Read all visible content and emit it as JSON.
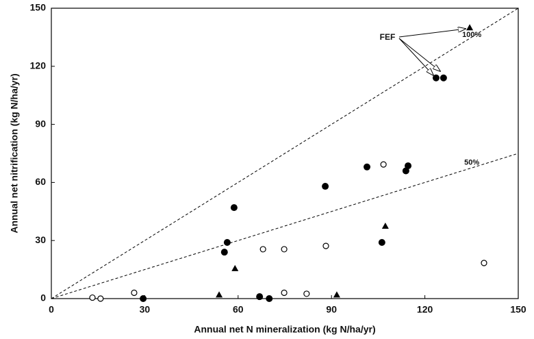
{
  "chart_data": {
    "type": "scatter",
    "x_label": "Annual net N mineralization  (kg N/ha/yr)",
    "y_label": "Annual net nitrification  (kg N/ha/yr)",
    "xlim": [
      0,
      150
    ],
    "ylim": [
      0,
      150
    ],
    "xticks": [
      0,
      30,
      60,
      90,
      120,
      150
    ],
    "yticks": [
      0,
      30,
      60,
      90,
      120,
      150
    ],
    "reference_lines": [
      {
        "slope": 1,
        "label": "100%"
      },
      {
        "slope": 0.5,
        "label": "50%"
      }
    ],
    "annotation": "FEF",
    "series": [
      {
        "marker": "filled-circle",
        "color": "#000000",
        "x": [
          29.5,
          56.5,
          55.6,
          58.7,
          88,
          101.4,
          114.6,
          113.9,
          106.2,
          123.6,
          126,
          66.9,
          70
        ],
        "values": [
          0,
          29,
          24,
          47,
          58,
          68,
          68.6,
          66,
          29,
          114,
          114,
          1,
          0
        ]
      },
      {
        "marker": "open-circle",
        "color": "#000000",
        "x": [
          13.2,
          15.8,
          26.6,
          68,
          74.8,
          74.8,
          82,
          88.2,
          106.7,
          139
        ],
        "values": [
          0.5,
          0,
          3,
          25.5,
          25.5,
          3,
          2.5,
          27.2,
          69.3,
          18.4
        ]
      },
      {
        "marker": "triangle",
        "color": "#000000",
        "x": [
          53.9,
          59,
          91.7,
          107.3,
          134.4
        ],
        "values": [
          2,
          15.6,
          2,
          37.5,
          140
        ]
      }
    ]
  }
}
